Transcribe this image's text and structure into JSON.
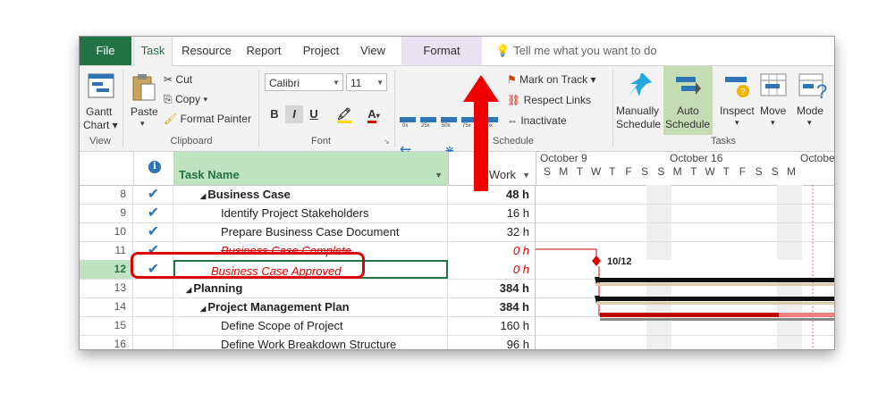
{
  "tabs": [
    "File",
    "Task",
    "Resource",
    "Report",
    "Project",
    "View",
    "Format"
  ],
  "tell_me": "Tell me what you want to do",
  "ribbon": {
    "view_group": {
      "gantt_chart": "Gantt",
      "gantt_chart2": "Chart",
      "label": "View"
    },
    "clipboard": {
      "paste": "Paste",
      "cut": "Cut",
      "copy": "Copy",
      "format_painter": "Format Painter",
      "label": "Clipboard"
    },
    "font": {
      "family": "Calibri",
      "size": "11",
      "label": "Font"
    },
    "schedule": {
      "label": "Schedule",
      "pcts": [
        "0x",
        "25x",
        "50x",
        "75x",
        "100x"
      ]
    },
    "mark_group": {
      "mark_on_track": "Mark on Track",
      "respect_links": "Respect Links",
      "inactivate": "Inactivate"
    },
    "tasks": {
      "manually": "Manually",
      "manually2": "Schedule",
      "auto": "Auto",
      "auto2": "Schedule",
      "inspect": "Inspect",
      "move": "Move",
      "mode": "Mode",
      "label": "Tasks"
    }
  },
  "headers": {
    "task_name": "Task Name",
    "work": "Work"
  },
  "timeline": {
    "weeks": [
      "October 9",
      "October 16",
      "Octobe"
    ],
    "days": [
      "S",
      "M",
      "T",
      "W",
      "T",
      "F",
      "S",
      "S",
      "M",
      "T",
      "W",
      "T",
      "F",
      "S",
      "S",
      "M"
    ]
  },
  "rows": [
    {
      "id": "8",
      "check": true,
      "name": "Business Case",
      "work": "48 h",
      "style": "summary",
      "indent": 1
    },
    {
      "id": "9",
      "check": true,
      "name": "Identify Project Stakeholders",
      "work": "16 h",
      "style": "normal",
      "indent": 2
    },
    {
      "id": "10",
      "check": true,
      "name": "Prepare Business Case Document",
      "work": "32 h",
      "style": "normal",
      "indent": 2
    },
    {
      "id": "11",
      "check": true,
      "name": "Business Case Complete",
      "work": "0 h",
      "style": "milestone-strike",
      "indent": 2
    },
    {
      "id": "12",
      "check": true,
      "name": "Business Case Approved",
      "work": "0 h",
      "style": "milestone",
      "indent": 1
    },
    {
      "id": "13",
      "check": false,
      "name": "Planning",
      "work": "384 h",
      "style": "summary",
      "indent": 0
    },
    {
      "id": "14",
      "check": false,
      "name": "Project Management Plan",
      "work": "384 h",
      "style": "summary",
      "indent": 1
    },
    {
      "id": "15",
      "check": false,
      "name": "Define Scope of Project",
      "work": "160 h",
      "style": "normal",
      "indent": 2
    },
    {
      "id": "16",
      "check": false,
      "name": "Define Work Breakdown Structure",
      "work": "96 h",
      "style": "normal",
      "indent": 2
    }
  ],
  "milestone_label": "10/12",
  "colors": {
    "accent": "#217346",
    "highlight": "#e00000",
    "check": "#2e75b6"
  }
}
